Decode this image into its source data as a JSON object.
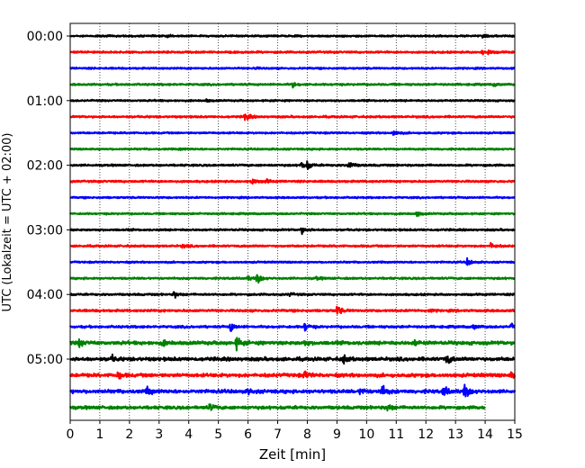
{
  "chart_data": {
    "type": "line",
    "title": "",
    "xlabel": "Zeit  [min]",
    "ylabel": "UTC (Lokalzeit = UTC + 02:00)",
    "xlim": [
      0,
      15
    ],
    "x_ticks": [
      "0",
      "1",
      "2",
      "3",
      "4",
      "5",
      "6",
      "7",
      "8",
      "9",
      "10",
      "11",
      "12",
      "13",
      "14",
      "15"
    ],
    "y_ticks": [
      "00:00",
      "01:00",
      "02:00",
      "03:00",
      "04:00",
      "05:00"
    ],
    "grid": "vertical dotted",
    "colors": [
      "#000000",
      "#ff0000",
      "#0000ff",
      "#008000"
    ],
    "trace_interval_min": 15,
    "series": [
      {
        "start": "00:00",
        "color": "#000000",
        "x_end": 15,
        "noise": 0.22,
        "events": [
          [
            3.3,
            0.3
          ],
          [
            13.9,
            0.3
          ]
        ]
      },
      {
        "start": "00:15",
        "color": "#ff0000",
        "x_end": 15,
        "noise": 0.25,
        "events": [
          [
            13.9,
            0.6
          ],
          [
            14.1,
            0.4
          ]
        ]
      },
      {
        "start": "00:30",
        "color": "#0000ff",
        "x_end": 15,
        "noise": 0.22,
        "events": [
          [
            6.2,
            0.3
          ]
        ]
      },
      {
        "start": "00:45",
        "color": "#008000",
        "x_end": 15,
        "noise": 0.25,
        "events": [
          [
            7.5,
            0.7
          ],
          [
            14.3,
            0.4
          ]
        ]
      },
      {
        "start": "01:00",
        "color": "#000000",
        "x_end": 15,
        "noise": 0.22,
        "events": [
          [
            4.6,
            0.3
          ]
        ]
      },
      {
        "start": "01:15",
        "color": "#ff0000",
        "x_end": 15,
        "noise": 0.25,
        "events": [
          [
            5.9,
            1.2
          ]
        ]
      },
      {
        "start": "01:30",
        "color": "#0000ff",
        "x_end": 15,
        "noise": 0.22,
        "events": [
          [
            10.9,
            1.0
          ]
        ]
      },
      {
        "start": "01:45",
        "color": "#008000",
        "x_end": 15,
        "noise": 0.22,
        "events": [
          [
            3.7,
            0.3
          ]
        ]
      },
      {
        "start": "02:00",
        "color": "#000000",
        "x_end": 15,
        "noise": 0.25,
        "events": [
          [
            7.8,
            1.0
          ],
          [
            8.0,
            0.9
          ],
          [
            9.4,
            1.2
          ]
        ]
      },
      {
        "start": "02:15",
        "color": "#ff0000",
        "x_end": 15,
        "noise": 0.25,
        "events": [
          [
            6.1,
            0.9
          ],
          [
            6.6,
            0.5
          ]
        ]
      },
      {
        "start": "02:30",
        "color": "#0000ff",
        "x_end": 15,
        "noise": 0.22,
        "events": []
      },
      {
        "start": "02:45",
        "color": "#008000",
        "x_end": 15,
        "noise": 0.22,
        "events": [
          [
            11.7,
            0.7
          ]
        ]
      },
      {
        "start": "03:00",
        "color": "#000000",
        "x_end": 15,
        "noise": 0.25,
        "events": [
          [
            7.8,
            1.0
          ]
        ]
      },
      {
        "start": "03:15",
        "color": "#ff0000",
        "x_end": 15,
        "noise": 0.25,
        "events": [
          [
            3.8,
            0.5
          ],
          [
            14.2,
            0.9
          ]
        ]
      },
      {
        "start": "03:30",
        "color": "#0000ff",
        "x_end": 15,
        "noise": 0.22,
        "events": [
          [
            13.4,
            1.0
          ]
        ]
      },
      {
        "start": "03:45",
        "color": "#008000",
        "x_end": 15,
        "noise": 0.25,
        "events": [
          [
            6.0,
            0.5
          ],
          [
            6.3,
            1.4
          ],
          [
            8.3,
            0.4
          ]
        ]
      },
      {
        "start": "04:00",
        "color": "#000000",
        "x_end": 15,
        "noise": 0.25,
        "events": [
          [
            3.5,
            0.9
          ],
          [
            7.4,
            0.4
          ]
        ]
      },
      {
        "start": "04:15",
        "color": "#ff0000",
        "x_end": 15,
        "noise": 0.3,
        "events": [
          [
            9.0,
            1.4
          ],
          [
            12.1,
            0.4
          ]
        ]
      },
      {
        "start": "04:30",
        "color": "#0000ff",
        "x_end": 15,
        "noise": 0.3,
        "events": [
          [
            5.4,
            1.2
          ],
          [
            7.9,
            1.2
          ],
          [
            13.6,
            0.7
          ],
          [
            14.9,
            1.0
          ]
        ]
      },
      {
        "start": "04:45",
        "color": "#008000",
        "x_end": 15,
        "noise": 0.45,
        "events": [
          [
            0.3,
            1.0
          ],
          [
            3.1,
            0.8
          ],
          [
            5.6,
            1.6
          ],
          [
            7.9,
            0.6
          ],
          [
            11.6,
            0.8
          ]
        ]
      },
      {
        "start": "05:00",
        "color": "#000000",
        "x_end": 15,
        "noise": 0.45,
        "events": [
          [
            1.4,
            0.8
          ],
          [
            9.2,
            1.2
          ],
          [
            12.7,
            1.3
          ]
        ]
      },
      {
        "start": "05:15",
        "color": "#ff0000",
        "x_end": 15,
        "noise": 0.45,
        "events": [
          [
            1.6,
            1.0
          ],
          [
            7.9,
            1.0
          ],
          [
            14.9,
            1.2
          ]
        ]
      },
      {
        "start": "05:30",
        "color": "#0000ff",
        "x_end": 15,
        "noise": 0.45,
        "events": [
          [
            2.6,
            1.0
          ],
          [
            6.0,
            0.6
          ],
          [
            9.8,
            1.0
          ],
          [
            10.5,
            1.8
          ],
          [
            12.6,
            1.4
          ],
          [
            13.3,
            2.0
          ]
        ]
      },
      {
        "start": "05:45",
        "color": "#008000",
        "x_end": 14.0,
        "noise": 0.4,
        "events": [
          [
            4.7,
            1.0
          ],
          [
            10.7,
            1.0
          ]
        ]
      }
    ]
  }
}
